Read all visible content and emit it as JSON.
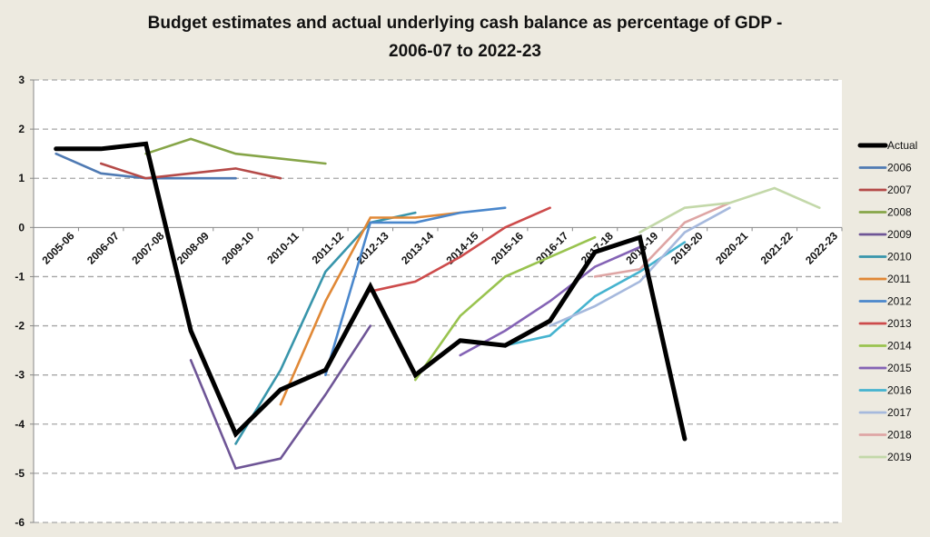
{
  "chart_data": {
    "type": "line",
    "title": "Budget estimates and actual underlying cash balance as percentage of GDP - 2006-07 to 2022-23",
    "title_lines": [
      "Budget estimates and actual underlying cash balance as percentage of GDP -",
      "2006-07 to 2022-23"
    ],
    "xlabel": "",
    "ylabel": "",
    "ylim": [
      -6,
      3
    ],
    "yticks": [
      3,
      2,
      1,
      0,
      -1,
      -2,
      -3,
      -4,
      -5,
      -6
    ],
    "grid": true,
    "legend_position": "right",
    "categories": [
      "2005-06",
      "2006-07",
      "2007-08",
      "2008-09",
      "2009-10",
      "2010-11",
      "2011-12",
      "2012-13",
      "2013-14",
      "2014-15",
      "2015-16",
      "2016-17",
      "2017-18",
      "2018-19",
      "2019-20",
      "2020-21",
      "2021-22",
      "2022-23"
    ],
    "series": [
      {
        "name": "Actual",
        "color": "#000000",
        "start": 0,
        "values": [
          1.6,
          1.6,
          1.7,
          -2.1,
          -4.2,
          -3.3,
          -2.9,
          -1.2,
          -3.0,
          -2.3,
          -2.4,
          -1.9,
          -0.5,
          -0.2,
          -4.3
        ]
      },
      {
        "name": "2006",
        "color": "#4f7ab3",
        "start": 0,
        "values": [
          1.5,
          1.1,
          1.0,
          1.0,
          1.0
        ]
      },
      {
        "name": "2007",
        "color": "#b54a48",
        "start": 1,
        "values": [
          1.3,
          1.0,
          1.1,
          1.2,
          1.0
        ]
      },
      {
        "name": "2008",
        "color": "#86a548",
        "start": 2,
        "values": [
          1.5,
          1.8,
          1.5,
          1.4,
          1.3
        ]
      },
      {
        "name": "2009",
        "color": "#6e5596",
        "start": 3,
        "values": [
          -2.7,
          -4.9,
          -4.7,
          -3.4,
          -2.0
        ]
      },
      {
        "name": "2010",
        "color": "#3895ab",
        "start": 4,
        "values": [
          -4.4,
          -2.9,
          -0.9,
          0.1,
          0.3
        ]
      },
      {
        "name": "2011",
        "color": "#e08836",
        "start": 5,
        "values": [
          -3.6,
          -1.5,
          0.2,
          0.2,
          0.3
        ]
      },
      {
        "name": "2012",
        "color": "#4a87cc",
        "start": 6,
        "values": [
          -3.0,
          0.1,
          0.1,
          0.3,
          0.4
        ]
      },
      {
        "name": "2013",
        "color": "#cd4b4b",
        "start": 7,
        "values": [
          -1.3,
          -1.1,
          -0.6,
          0.0,
          0.4
        ]
      },
      {
        "name": "2014",
        "color": "#99c34f",
        "start": 8,
        "values": [
          -3.1,
          -1.8,
          -1.0,
          -0.6,
          -0.2
        ]
      },
      {
        "name": "2015",
        "color": "#8463b5",
        "start": 9,
        "values": [
          -2.6,
          -2.1,
          -1.5,
          -0.8,
          -0.4
        ]
      },
      {
        "name": "2016",
        "color": "#45b3cf",
        "start": 10,
        "values": [
          -2.4,
          -2.2,
          -1.4,
          -0.9,
          -0.3
        ]
      },
      {
        "name": "2017",
        "color": "#a6b9dd",
        "start": 11,
        "values": [
          -2.0,
          -1.6,
          -1.1,
          -0.1,
          0.4
        ]
      },
      {
        "name": "2018",
        "color": "#dea5a4",
        "start": 12,
        "values": [
          -1.0,
          -0.85,
          0.1,
          0.5
        ]
      },
      {
        "name": "2019",
        "color": "#c3d8a9",
        "start": 13,
        "values": [
          -0.1,
          0.4,
          0.5,
          0.8,
          0.4
        ]
      }
    ]
  }
}
